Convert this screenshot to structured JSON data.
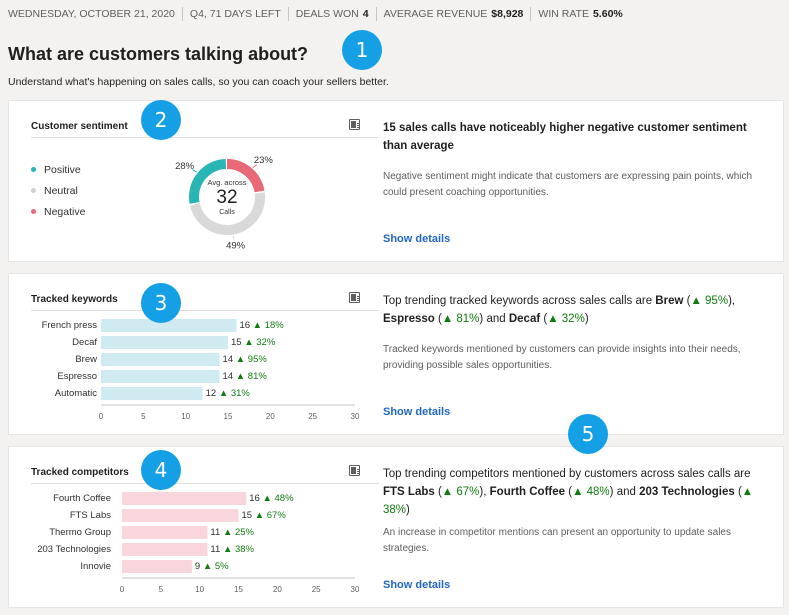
{
  "topbar": {
    "date": "WEDNESDAY, OCTOBER 21, 2020",
    "quarter": "Q4, 71 DAYS LEFT",
    "deals_won_label": "DEALS WON",
    "deals_won_value": "4",
    "avg_revenue_label": "AVERAGE REVENUE",
    "avg_revenue_value": "$8,928",
    "win_rate_label": "WIN RATE",
    "win_rate_value": "5.60%"
  },
  "page": {
    "title": "What are customers talking about?",
    "subtitle": "Understand what's happening on sales calls, so you can coach your sellers better."
  },
  "badges": [
    "1",
    "2",
    "3",
    "4",
    "5"
  ],
  "sentiment": {
    "title": "Customer sentiment",
    "legend": [
      {
        "label": "Positive",
        "color": "#2ab5b5"
      },
      {
        "label": "Neutral",
        "color": "#d0d0d0"
      },
      {
        "label": "Negative",
        "color": "#e86a78"
      }
    ],
    "center_label_top": "Avg. across",
    "center_value": "32",
    "center_label_bottom": "Calls",
    "slices": [
      {
        "name": "Negative",
        "percent": 23,
        "label": "23%",
        "color": "#e86a78"
      },
      {
        "name": "Neutral",
        "percent": 49,
        "label": "49%",
        "color": "#d9d9d9"
      },
      {
        "name": "Positive",
        "percent": 28,
        "label": "28%",
        "color": "#2ab5b5"
      }
    ],
    "insight_head": "15 sales calls have noticeably higher negative customer sentiment than average",
    "insight_body": "Negative sentiment might indicate that customers are expressing pain points, which could present coaching opportunities.",
    "show_details": "Show details"
  },
  "keywords": {
    "title": "Tracked keywords",
    "insight_head": {
      "p1": "Top trending tracked keywords across sales calls are ",
      "k1": "Brew",
      "c1": " (",
      "t1": "▲ 95%",
      "p2": "), ",
      "k2": "Espresso",
      "c2": " (",
      "t2": "▲ 81%",
      "p3": ") and ",
      "k3": "Decaf",
      "c3": " (",
      "t3": "▲ 32%",
      "p4": ")"
    },
    "insight_body": "Tracked keywords mentioned by customers can provide insights into their needs, providing possible sales opportunities.",
    "show_details": "Show details"
  },
  "competitors": {
    "title": "Tracked competitors",
    "insight_head": {
      "p1": "Top trending competitors mentioned by customers across sales calls are ",
      "k1": "FTS Labs",
      "c1": " (",
      "t1": "▲ 67%",
      "p2": "), ",
      "k2": "Fourth Coffee",
      "c2": " (",
      "t2": "▲ 48%",
      "p3": ") and ",
      "k3": "203 Technologies",
      "c3": " (",
      "t3": "▲ 38%",
      "p4": ")"
    },
    "insight_body": "An increase in competitor mentions can present an opportunity to update sales strategies.",
    "show_details": "Show details"
  },
  "chart_data": [
    {
      "type": "pie",
      "title": "Customer sentiment",
      "categories": [
        "Negative",
        "Neutral",
        "Positive"
      ],
      "values": [
        23,
        49,
        28
      ],
      "center_value": 32
    },
    {
      "type": "bar",
      "orientation": "horizontal",
      "title": "Tracked keywords",
      "categories": [
        "French press",
        "Decaf",
        "Brew",
        "Espresso",
        "Automatic"
      ],
      "values": [
        16,
        15,
        14,
        14,
        12
      ],
      "trend": [
        "▲ 18%",
        "▲ 32%",
        "▲ 95%",
        "▲ 81%",
        "▲ 31%"
      ],
      "xlim": [
        0,
        30
      ],
      "ticks": [
        "0",
        "5",
        "10",
        "15",
        "20",
        "25",
        "30"
      ],
      "bar_color": "#cfeaf1"
    },
    {
      "type": "bar",
      "orientation": "horizontal",
      "title": "Tracked competitors",
      "categories": [
        "Fourth Coffee",
        "FTS Labs",
        "Thermo Group",
        "203 Technologies",
        "Innovie"
      ],
      "values": [
        16,
        15,
        11,
        11,
        9
      ],
      "trend": [
        "▲ 48%",
        "▲ 67%",
        "▲ 25%",
        "▲ 38%",
        "▲ 5%"
      ],
      "xlim": [
        0,
        30
      ],
      "ticks": [
        "0",
        "5",
        "10",
        "15",
        "20",
        "25",
        "30"
      ],
      "bar_color": "#f9d6dc"
    }
  ]
}
